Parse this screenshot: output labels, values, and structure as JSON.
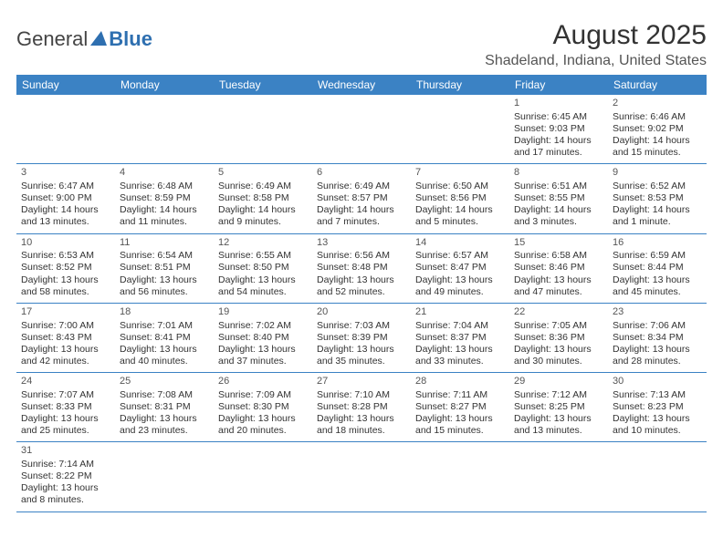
{
  "logo": {
    "text1": "General",
    "text2": "Blue"
  },
  "title": "August 2025",
  "location": "Shadeland, Indiana, United States",
  "weekdays": [
    "Sunday",
    "Monday",
    "Tuesday",
    "Wednesday",
    "Thursday",
    "Friday",
    "Saturday"
  ],
  "header_bg": "#3b82c4",
  "header_fg": "#ffffff",
  "grid": [
    [
      null,
      null,
      null,
      null,
      null,
      {
        "n": "1",
        "sr": "Sunrise: 6:45 AM",
        "ss": "Sunset: 9:03 PM",
        "dl": "Daylight: 14 hours and 17 minutes."
      },
      {
        "n": "2",
        "sr": "Sunrise: 6:46 AM",
        "ss": "Sunset: 9:02 PM",
        "dl": "Daylight: 14 hours and 15 minutes."
      }
    ],
    [
      {
        "n": "3",
        "sr": "Sunrise: 6:47 AM",
        "ss": "Sunset: 9:00 PM",
        "dl": "Daylight: 14 hours and 13 minutes."
      },
      {
        "n": "4",
        "sr": "Sunrise: 6:48 AM",
        "ss": "Sunset: 8:59 PM",
        "dl": "Daylight: 14 hours and 11 minutes."
      },
      {
        "n": "5",
        "sr": "Sunrise: 6:49 AM",
        "ss": "Sunset: 8:58 PM",
        "dl": "Daylight: 14 hours and 9 minutes."
      },
      {
        "n": "6",
        "sr": "Sunrise: 6:49 AM",
        "ss": "Sunset: 8:57 PM",
        "dl": "Daylight: 14 hours and 7 minutes."
      },
      {
        "n": "7",
        "sr": "Sunrise: 6:50 AM",
        "ss": "Sunset: 8:56 PM",
        "dl": "Daylight: 14 hours and 5 minutes."
      },
      {
        "n": "8",
        "sr": "Sunrise: 6:51 AM",
        "ss": "Sunset: 8:55 PM",
        "dl": "Daylight: 14 hours and 3 minutes."
      },
      {
        "n": "9",
        "sr": "Sunrise: 6:52 AM",
        "ss": "Sunset: 8:53 PM",
        "dl": "Daylight: 14 hours and 1 minute."
      }
    ],
    [
      {
        "n": "10",
        "sr": "Sunrise: 6:53 AM",
        "ss": "Sunset: 8:52 PM",
        "dl": "Daylight: 13 hours and 58 minutes."
      },
      {
        "n": "11",
        "sr": "Sunrise: 6:54 AM",
        "ss": "Sunset: 8:51 PM",
        "dl": "Daylight: 13 hours and 56 minutes."
      },
      {
        "n": "12",
        "sr": "Sunrise: 6:55 AM",
        "ss": "Sunset: 8:50 PM",
        "dl": "Daylight: 13 hours and 54 minutes."
      },
      {
        "n": "13",
        "sr": "Sunrise: 6:56 AM",
        "ss": "Sunset: 8:48 PM",
        "dl": "Daylight: 13 hours and 52 minutes."
      },
      {
        "n": "14",
        "sr": "Sunrise: 6:57 AM",
        "ss": "Sunset: 8:47 PM",
        "dl": "Daylight: 13 hours and 49 minutes."
      },
      {
        "n": "15",
        "sr": "Sunrise: 6:58 AM",
        "ss": "Sunset: 8:46 PM",
        "dl": "Daylight: 13 hours and 47 minutes."
      },
      {
        "n": "16",
        "sr": "Sunrise: 6:59 AM",
        "ss": "Sunset: 8:44 PM",
        "dl": "Daylight: 13 hours and 45 minutes."
      }
    ],
    [
      {
        "n": "17",
        "sr": "Sunrise: 7:00 AM",
        "ss": "Sunset: 8:43 PM",
        "dl": "Daylight: 13 hours and 42 minutes."
      },
      {
        "n": "18",
        "sr": "Sunrise: 7:01 AM",
        "ss": "Sunset: 8:41 PM",
        "dl": "Daylight: 13 hours and 40 minutes."
      },
      {
        "n": "19",
        "sr": "Sunrise: 7:02 AM",
        "ss": "Sunset: 8:40 PM",
        "dl": "Daylight: 13 hours and 37 minutes."
      },
      {
        "n": "20",
        "sr": "Sunrise: 7:03 AM",
        "ss": "Sunset: 8:39 PM",
        "dl": "Daylight: 13 hours and 35 minutes."
      },
      {
        "n": "21",
        "sr": "Sunrise: 7:04 AM",
        "ss": "Sunset: 8:37 PM",
        "dl": "Daylight: 13 hours and 33 minutes."
      },
      {
        "n": "22",
        "sr": "Sunrise: 7:05 AM",
        "ss": "Sunset: 8:36 PM",
        "dl": "Daylight: 13 hours and 30 minutes."
      },
      {
        "n": "23",
        "sr": "Sunrise: 7:06 AM",
        "ss": "Sunset: 8:34 PM",
        "dl": "Daylight: 13 hours and 28 minutes."
      }
    ],
    [
      {
        "n": "24",
        "sr": "Sunrise: 7:07 AM",
        "ss": "Sunset: 8:33 PM",
        "dl": "Daylight: 13 hours and 25 minutes."
      },
      {
        "n": "25",
        "sr": "Sunrise: 7:08 AM",
        "ss": "Sunset: 8:31 PM",
        "dl": "Daylight: 13 hours and 23 minutes."
      },
      {
        "n": "26",
        "sr": "Sunrise: 7:09 AM",
        "ss": "Sunset: 8:30 PM",
        "dl": "Daylight: 13 hours and 20 minutes."
      },
      {
        "n": "27",
        "sr": "Sunrise: 7:10 AM",
        "ss": "Sunset: 8:28 PM",
        "dl": "Daylight: 13 hours and 18 minutes."
      },
      {
        "n": "28",
        "sr": "Sunrise: 7:11 AM",
        "ss": "Sunset: 8:27 PM",
        "dl": "Daylight: 13 hours and 15 minutes."
      },
      {
        "n": "29",
        "sr": "Sunrise: 7:12 AM",
        "ss": "Sunset: 8:25 PM",
        "dl": "Daylight: 13 hours and 13 minutes."
      },
      {
        "n": "30",
        "sr": "Sunrise: 7:13 AM",
        "ss": "Sunset: 8:23 PM",
        "dl": "Daylight: 13 hours and 10 minutes."
      }
    ],
    [
      {
        "n": "31",
        "sr": "Sunrise: 7:14 AM",
        "ss": "Sunset: 8:22 PM",
        "dl": "Daylight: 13 hours and 8 minutes."
      },
      null,
      null,
      null,
      null,
      null,
      null
    ]
  ]
}
